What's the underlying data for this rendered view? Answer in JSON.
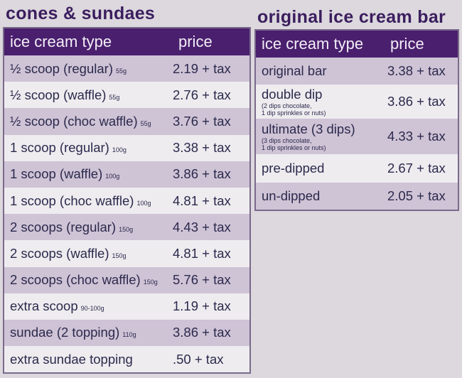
{
  "cones": {
    "title": "cones & sundaes",
    "col_type": "ice cream type",
    "col_price": "price",
    "rows": [
      {
        "name": "½ scoop (regular)",
        "weight": "55g",
        "price": "2.19 + tax"
      },
      {
        "name": "½ scoop (waffle)",
        "weight": "55g",
        "price": "2.76 + tax"
      },
      {
        "name": "½ scoop (choc waffle)",
        "weight": "55g",
        "price": "3.76 + tax"
      },
      {
        "name": "1 scoop (regular)",
        "weight": "100g",
        "price": "3.38 + tax"
      },
      {
        "name": "1 scoop (waffle)",
        "weight": "100g",
        "price": "3.86 + tax"
      },
      {
        "name": "1 scoop (choc waffle)",
        "weight": "100g",
        "price": "4.81 + tax"
      },
      {
        "name": "2 scoops (regular)",
        "weight": "150g",
        "price": "4.43 + tax"
      },
      {
        "name": "2 scoops (waffle)",
        "weight": "150g",
        "price": "4.81 + tax"
      },
      {
        "name": "2 scoops (choc waffle)",
        "weight": "150g",
        "price": "5.76 + tax"
      },
      {
        "name": "extra scoop",
        "weight": "90-100g",
        "price": "1.19 + tax"
      },
      {
        "name": "sundae (2 topping)",
        "weight": "110g",
        "price": "3.86 + tax"
      },
      {
        "name": "extra sundae topping",
        "weight": "",
        "price": ".50 + tax"
      }
    ]
  },
  "bars": {
    "title": "original ice cream bar",
    "col_type": "ice cream type",
    "col_price": "price",
    "rows": [
      {
        "name": "original bar",
        "note1": "",
        "note2": "",
        "price": "3.38 + tax"
      },
      {
        "name": "double dip",
        "note1": "(2 dips chocolate,",
        "note2": "1 dip sprinkles or nuts)",
        "price": "3.86 + tax"
      },
      {
        "name": "ultimate (3 dips)",
        "note1": "(3 dips chocolate,",
        "note2": "1 dip sprinkles or nuts)",
        "price": "4.33 + tax"
      },
      {
        "name": "pre-dipped",
        "note1": "",
        "note2": "",
        "price": "2.67 + tax"
      },
      {
        "name": "un-dipped",
        "note1": "",
        "note2": "",
        "price": "2.05 + tax"
      }
    ]
  }
}
